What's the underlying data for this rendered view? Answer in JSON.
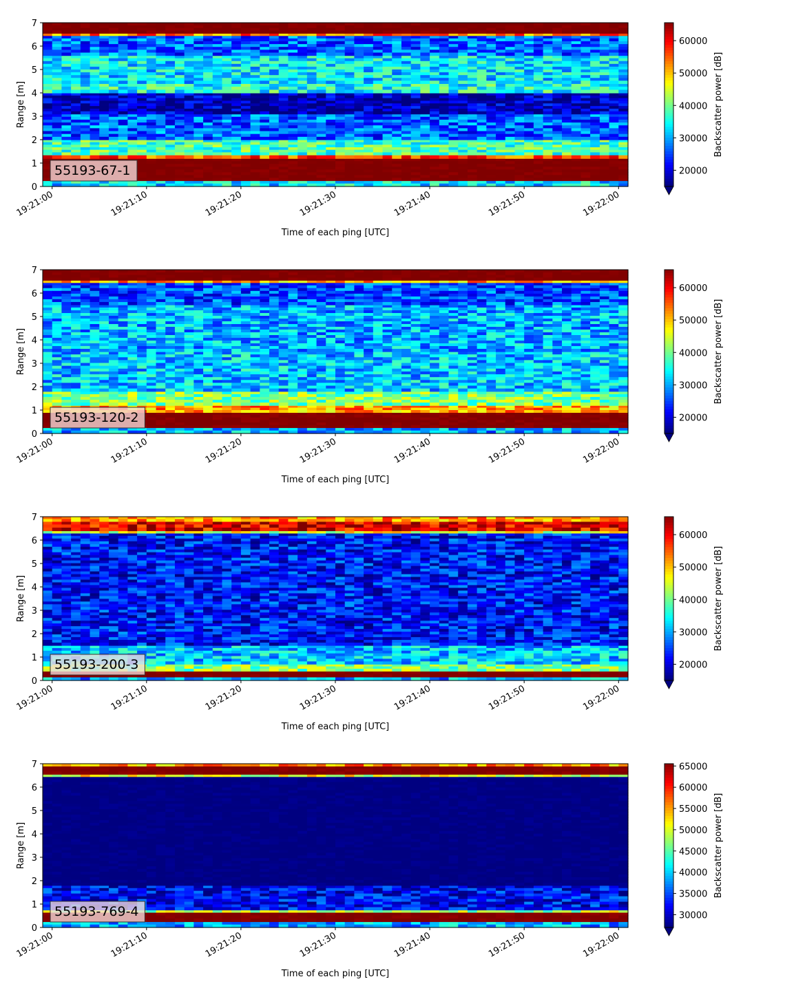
{
  "chart_data": [
    {
      "type": "heatmap",
      "panel_label": "55193-67-1",
      "xlabel": "Time of each ping [UTC]",
      "ylabel": "Range [m]",
      "xticks": [
        "19:21:00",
        "19:21:10",
        "19:21:20",
        "19:21:30",
        "19:21:40",
        "19:21:50",
        "19:22:00"
      ],
      "yticks": [
        "0",
        "1",
        "2",
        "3",
        "4",
        "5",
        "6",
        "7"
      ],
      "ylim": [
        0,
        7
      ],
      "xlim_seconds": [
        -1,
        61
      ],
      "colorbar": {
        "label": "Backscatter power [dB]",
        "range": [
          15000,
          65535
        ],
        "ticks": [
          "20000",
          "30000",
          "40000",
          "50000",
          "60000"
        ],
        "tick_values": [
          20000,
          30000,
          40000,
          50000,
          60000
        ],
        "colormap": "jet",
        "extend": "min"
      },
      "profile": [
        {
          "range_m": [
            0.0,
            0.25
          ],
          "level": 0.35
        },
        {
          "range_m": [
            0.25,
            1.2
          ],
          "level": 1.0
        },
        {
          "range_m": [
            1.2,
            1.35
          ],
          "level": 0.8
        },
        {
          "range_m": [
            1.35,
            2.0
          ],
          "level": 0.45
        },
        {
          "range_m": [
            2.0,
            3.1
          ],
          "level": 0.22
        },
        {
          "range_m": [
            3.1,
            4.0
          ],
          "level": 0.05
        },
        {
          "range_m": [
            4.0,
            4.4
          ],
          "level": 0.4
        },
        {
          "range_m": [
            4.4,
            5.6
          ],
          "level": 0.35
        },
        {
          "range_m": [
            5.6,
            6.45
          ],
          "level": 0.22
        },
        {
          "range_m": [
            6.45,
            6.55
          ],
          "level": 0.75
        },
        {
          "range_m": [
            6.55,
            7.0
          ],
          "level": 1.0
        }
      ]
    },
    {
      "type": "heatmap",
      "panel_label": "55193-120-2",
      "xlabel": "Time of each ping [UTC]",
      "ylabel": "Range [m]",
      "xticks": [
        "19:21:00",
        "19:21:10",
        "19:21:20",
        "19:21:30",
        "19:21:40",
        "19:21:50",
        "19:22:00"
      ],
      "yticks": [
        "0",
        "1",
        "2",
        "3",
        "4",
        "5",
        "6",
        "7"
      ],
      "ylim": [
        0,
        7
      ],
      "xlim_seconds": [
        -1,
        61
      ],
      "colorbar": {
        "label": "Backscatter power [dB]",
        "range": [
          15000,
          65535
        ],
        "ticks": [
          "20000",
          "30000",
          "40000",
          "50000",
          "60000"
        ],
        "tick_values": [
          20000,
          30000,
          40000,
          50000,
          60000
        ],
        "colormap": "jet",
        "extend": "min"
      },
      "profile": [
        {
          "range_m": [
            0.0,
            0.25
          ],
          "level": 0.3
        },
        {
          "range_m": [
            0.25,
            0.9
          ],
          "level": 1.0
        },
        {
          "range_m": [
            0.9,
            1.2
          ],
          "level": 0.72
        },
        {
          "range_m": [
            1.2,
            1.8
          ],
          "level": 0.5
        },
        {
          "range_m": [
            1.8,
            3.5
          ],
          "level": 0.32
        },
        {
          "range_m": [
            3.5,
            5.5
          ],
          "level": 0.3
        },
        {
          "range_m": [
            5.5,
            6.45
          ],
          "level": 0.2
        },
        {
          "range_m": [
            6.45,
            6.55
          ],
          "level": 0.7
        },
        {
          "range_m": [
            6.55,
            7.0
          ],
          "level": 1.0
        }
      ]
    },
    {
      "type": "heatmap",
      "panel_label": "55193-200-3",
      "xlabel": "Time of each ping [UTC]",
      "ylabel": "Range [m]",
      "xticks": [
        "19:21:00",
        "19:21:10",
        "19:21:20",
        "19:21:30",
        "19:21:40",
        "19:21:50",
        "19:22:00"
      ],
      "yticks": [
        "0",
        "1",
        "2",
        "3",
        "4",
        "5",
        "6",
        "7"
      ],
      "ylim": [
        0,
        7
      ],
      "xlim_seconds": [
        -1,
        61
      ],
      "colorbar": {
        "label": "Backscatter power [dB]",
        "range": [
          15000,
          65535
        ],
        "ticks": [
          "20000",
          "30000",
          "40000",
          "50000",
          "60000"
        ],
        "tick_values": [
          20000,
          30000,
          40000,
          50000,
          60000
        ],
        "colormap": "jet",
        "extend": "min"
      },
      "profile": [
        {
          "range_m": [
            0.0,
            0.15
          ],
          "level": 0.3
        },
        {
          "range_m": [
            0.15,
            0.4
          ],
          "level": 1.0
        },
        {
          "range_m": [
            0.4,
            0.7
          ],
          "level": 0.5
        },
        {
          "range_m": [
            0.7,
            1.5
          ],
          "level": 0.32
        },
        {
          "range_m": [
            1.5,
            6.3
          ],
          "level": 0.14
        },
        {
          "range_m": [
            6.3,
            6.4
          ],
          "level": 0.6
        },
        {
          "range_m": [
            6.4,
            6.8
          ],
          "level": 0.9
        },
        {
          "range_m": [
            6.8,
            7.0
          ],
          "level": 0.72
        }
      ]
    },
    {
      "type": "heatmap",
      "panel_label": "55193-769-4",
      "xlabel": "Time of each ping [UTC]",
      "ylabel": "Range [m]",
      "xticks": [
        "19:21:00",
        "19:21:10",
        "19:21:20",
        "19:21:30",
        "19:21:40",
        "19:21:50",
        "19:22:00"
      ],
      "yticks": [
        "0",
        "1",
        "2",
        "3",
        "4",
        "5",
        "6",
        "7"
      ],
      "ylim": [
        0,
        7
      ],
      "xlim_seconds": [
        -1,
        61
      ],
      "colorbar": {
        "label": "Backscatter power [dB]",
        "range": [
          27000,
          65535
        ],
        "ticks": [
          "30000",
          "35000",
          "40000",
          "45000",
          "50000",
          "55000",
          "60000",
          "65000"
        ],
        "tick_values": [
          30000,
          35000,
          40000,
          45000,
          50000,
          55000,
          60000,
          65000
        ],
        "colormap": "jet",
        "extend": "min"
      },
      "profile": [
        {
          "range_m": [
            0.0,
            0.25
          ],
          "level": 0.3
        },
        {
          "range_m": [
            0.25,
            0.65
          ],
          "level": 1.0
        },
        {
          "range_m": [
            0.65,
            0.75
          ],
          "level": 0.55
        },
        {
          "range_m": [
            0.75,
            1.8
          ],
          "level": 0.12
        },
        {
          "range_m": [
            1.8,
            6.45
          ],
          "level": 0.0
        },
        {
          "range_m": [
            6.45,
            6.55
          ],
          "level": 0.6
        },
        {
          "range_m": [
            6.55,
            6.9
          ],
          "level": 1.0
        },
        {
          "range_m": [
            6.9,
            7.0
          ],
          "level": 0.72
        }
      ]
    }
  ]
}
